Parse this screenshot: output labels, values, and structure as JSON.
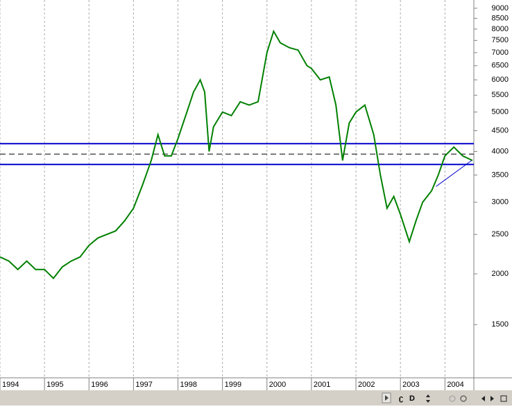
{
  "chart_data": {
    "type": "line",
    "log_y": true,
    "grid": true,
    "xlim": [
      1994,
      2004.65
    ],
    "ylim": [
      1110,
      9430
    ],
    "xticks": [
      1994,
      1995,
      1996,
      1997,
      1998,
      1999,
      2000,
      2001,
      2002,
      2003,
      2004
    ],
    "yticks": [
      1500,
      2000,
      2500,
      3000,
      3500,
      4000,
      4500,
      5000,
      5500,
      6000,
      6500,
      7000,
      7500,
      8000,
      8500,
      9000
    ],
    "series": [
      {
        "color": "#008000",
        "x": [
          1994.0,
          1994.2,
          1994.4,
          1994.6,
          1994.8,
          1995.0,
          1995.2,
          1995.4,
          1995.6,
          1995.8,
          1996.0,
          1996.2,
          1996.4,
          1996.6,
          1996.8,
          1997.0,
          1997.2,
          1997.4,
          1997.55,
          1997.7,
          1997.85,
          1998.0,
          1998.2,
          1998.35,
          1998.5,
          1998.6,
          1998.7,
          1998.8,
          1999.0,
          1999.2,
          1999.4,
          1999.6,
          1999.8,
          2000.0,
          2000.15,
          2000.3,
          2000.5,
          2000.7,
          2000.9,
          2001.0,
          2001.2,
          2001.4,
          2001.55,
          2001.7,
          2001.85,
          2002.0,
          2002.2,
          2002.4,
          2002.55,
          2002.7,
          2002.85,
          2003.0,
          2003.2,
          2003.35,
          2003.5,
          2003.7,
          2003.85,
          2004.0,
          2004.2,
          2004.4,
          2004.62
        ],
        "values": [
          2200,
          2150,
          2050,
          2150,
          2050,
          2050,
          1950,
          2080,
          2150,
          2200,
          2350,
          2450,
          2500,
          2550,
          2700,
          2900,
          3300,
          3800,
          4400,
          3900,
          3900,
          4300,
          5000,
          5600,
          6000,
          5600,
          4000,
          4600,
          5000,
          4900,
          5300,
          5200,
          5300,
          7000,
          7900,
          7400,
          7200,
          7100,
          6500,
          6400,
          6000,
          6100,
          5200,
          3800,
          4700,
          5000,
          5200,
          4400,
          3500,
          2900,
          3100,
          2800,
          2400,
          2700,
          3000,
          3200,
          3500,
          3900,
          4100,
          3900,
          3800
        ]
      }
    ],
    "hlines": [
      {
        "value": 4180,
        "color": "#0000cc",
        "dashed": false
      },
      {
        "value": 3940,
        "color": "#000000",
        "dashed": true
      },
      {
        "value": 3715,
        "color": "#0000cc",
        "dashed": false
      }
    ],
    "trendline": {
      "x": [
        2003.8,
        2004.6
      ],
      "values": [
        3280,
        3800
      ],
      "color": "#0000cc"
    }
  },
  "toolbar": {
    "period": "D"
  }
}
